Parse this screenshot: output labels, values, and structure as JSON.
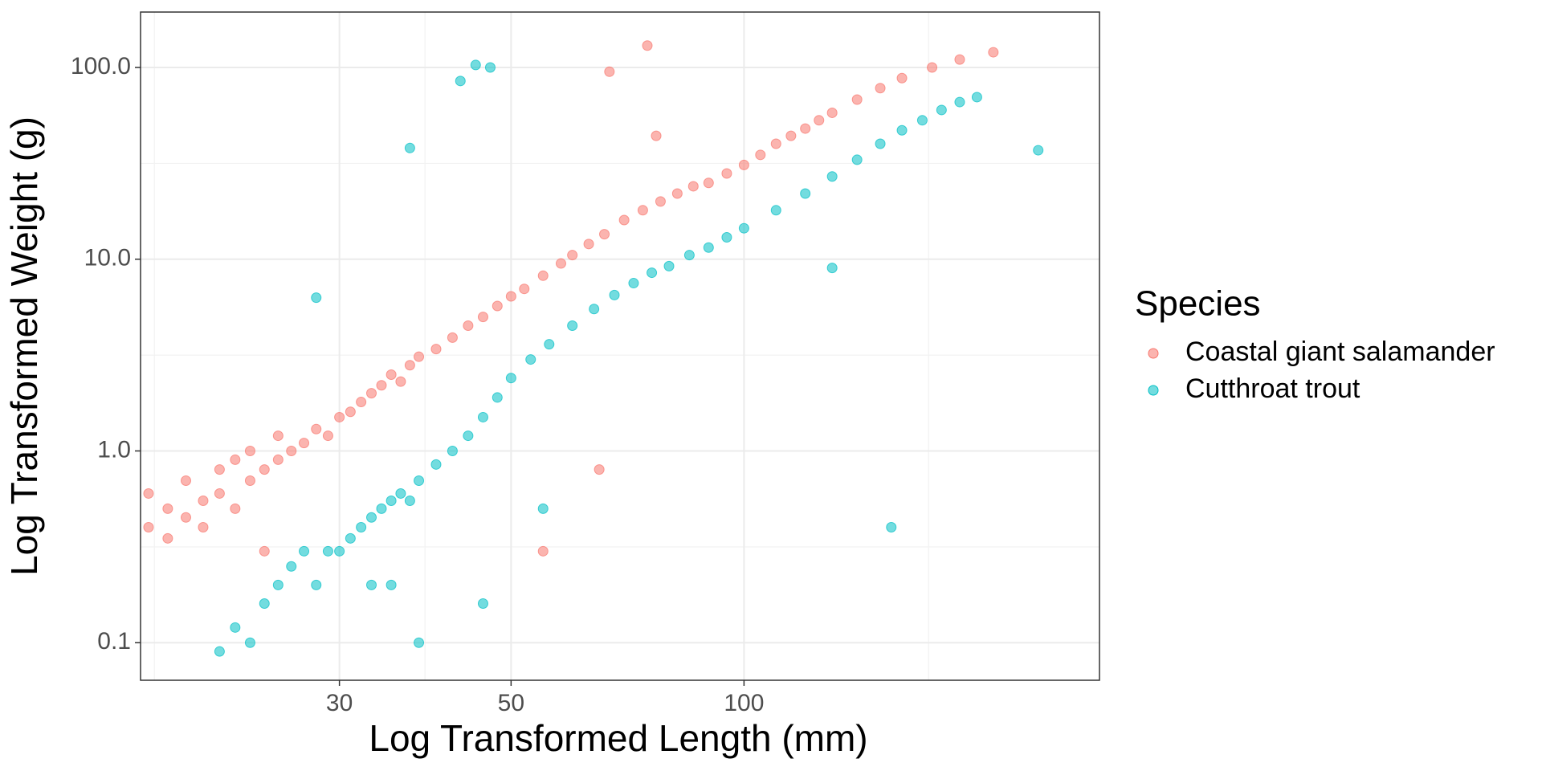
{
  "chart_data": {
    "type": "scatter",
    "xlabel": "Log Transformed Length (mm)",
    "ylabel": "Log Transformed Weight (g)",
    "legend_title": "Species",
    "legend_position": "right",
    "xscale": "log",
    "yscale": "log",
    "grid": true,
    "xlim": [
      16.6,
      288
    ],
    "ylim": [
      0.0637,
      194.5
    ],
    "xticks": [
      30,
      50,
      100
    ],
    "x_minor_ticks": [
      17.3,
      38.7,
      173.2
    ],
    "yticks": [
      {
        "value": 100,
        "label": "100.0"
      },
      {
        "value": 10,
        "label": "10.0"
      },
      {
        "value": 1,
        "label": "1.0"
      },
      0.1
    ],
    "y_minor_ticks": [
      31.6,
      3.16,
      0.316
    ],
    "series": [
      {
        "name": "Coastal giant salamander",
        "color": "#F8766D",
        "x": [
          17,
          17,
          18,
          18,
          19,
          19,
          20,
          20,
          21,
          21,
          22,
          22,
          23,
          23,
          24,
          25,
          25,
          26,
          27,
          28,
          29,
          30,
          31,
          32,
          33,
          34,
          35,
          36,
          37,
          38,
          40,
          42,
          44,
          46,
          48,
          50,
          52,
          55,
          58,
          60,
          63,
          66,
          70,
          74,
          78,
          82,
          86,
          90,
          95,
          100,
          105,
          110,
          115,
          120,
          125,
          130,
          140,
          150,
          160,
          175,
          190,
          210,
          67,
          75,
          77,
          65,
          55,
          24
        ],
        "values": [
          0.4,
          0.6,
          0.35,
          0.5,
          0.45,
          0.7,
          0.55,
          0.4,
          0.6,
          0.8,
          0.5,
          0.9,
          0.7,
          1.0,
          0.8,
          0.9,
          1.2,
          1.0,
          1.1,
          1.3,
          1.2,
          1.5,
          1.6,
          1.8,
          2.0,
          2.2,
          2.5,
          2.3,
          2.8,
          3.1,
          3.4,
          3.9,
          4.5,
          5.0,
          5.7,
          6.4,
          7.0,
          8.2,
          9.5,
          10.5,
          12,
          13.5,
          16,
          18,
          20,
          22,
          24,
          25,
          28,
          31,
          35,
          40,
          44,
          48,
          53,
          58,
          68,
          78,
          88,
          100,
          110,
          120,
          95,
          130,
          44,
          0.8,
          0.3,
          0.3
        ]
      },
      {
        "name": "Cutthroat trout",
        "color": "#00BFC4",
        "x": [
          21,
          22,
          23,
          24,
          25,
          26,
          27,
          28,
          29,
          30,
          31,
          32,
          33,
          34,
          35,
          36,
          38,
          40,
          42,
          44,
          46,
          48,
          50,
          53,
          56,
          60,
          64,
          68,
          72,
          76,
          80,
          85,
          90,
          95,
          100,
          110,
          120,
          130,
          140,
          150,
          160,
          170,
          180,
          190,
          200,
          43,
          45,
          47,
          37,
          28,
          155,
          240,
          46,
          38,
          55,
          130,
          35,
          33,
          37
        ],
        "values": [
          0.09,
          0.12,
          0.1,
          0.16,
          0.2,
          0.25,
          0.3,
          0.2,
          0.3,
          0.3,
          0.35,
          0.4,
          0.45,
          0.5,
          0.55,
          0.6,
          0.7,
          0.85,
          1.0,
          1.2,
          1.5,
          1.9,
          2.4,
          3.0,
          3.6,
          4.5,
          5.5,
          6.5,
          7.5,
          8.5,
          9.2,
          10.5,
          11.5,
          13,
          14.5,
          18,
          22,
          27,
          33,
          40,
          47,
          53,
          60,
          66,
          70,
          85,
          103,
          100,
          38,
          6.3,
          0.4,
          37,
          0.16,
          0.1,
          0.5,
          9,
          0.2,
          0.2,
          0.55
        ]
      }
    ]
  }
}
